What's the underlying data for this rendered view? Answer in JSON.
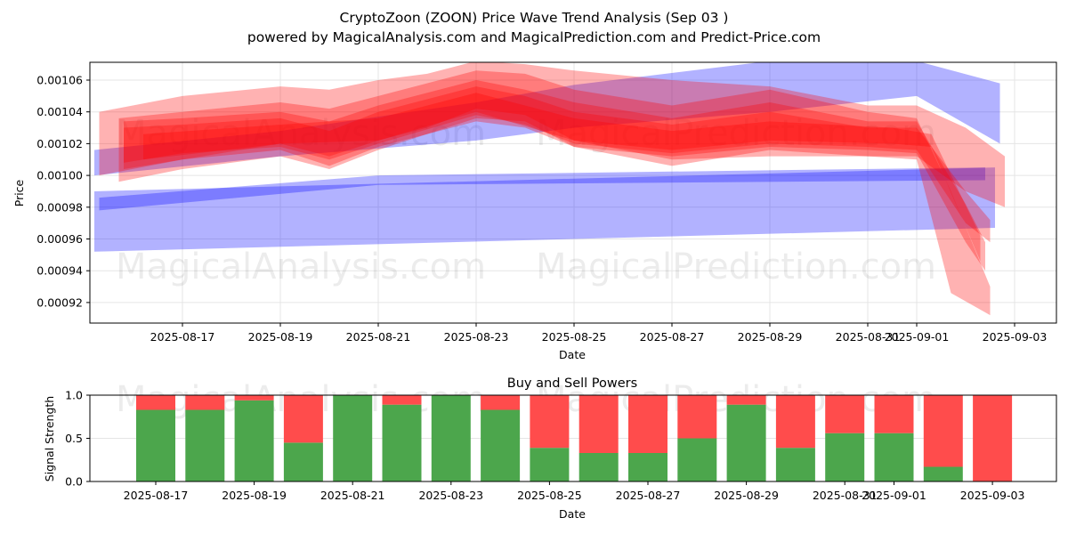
{
  "chart_data": [
    {
      "type": "area",
      "title_line1": "CryptoZoon (ZOON) Price Wave Trend Analysis (Sep 03 )",
      "title_line2": "powered by MagicalAnalysis.com and MagicalPrediction.com and Predict-Price.com",
      "xlabel": "Date",
      "ylabel": "Price",
      "ylim": [
        0.000908,
        0.001072
      ],
      "yticks": [
        "0.00092",
        "0.00094",
        "0.00096",
        "0.00098",
        "0.00100",
        "0.00102",
        "0.00104",
        "0.00106"
      ],
      "xticks": [
        "2025-08-17",
        "2025-08-19",
        "2025-08-21",
        "2025-08-23",
        "2025-08-25",
        "2025-08-27",
        "2025-08-29",
        "2025-08-31",
        "2025-09-01",
        "2025-09-03"
      ],
      "grid": true,
      "watermark": [
        "MagicalAnalysis.com",
        "MagicalPrediction.com"
      ],
      "bands": [
        {
          "color": "#0000ff",
          "opacity": 0.3,
          "points": [
            [
              -1.8,
              0.000952,
              0.00099
            ],
            [
              16.6,
              0.000967,
              0.001005
            ]
          ]
        },
        {
          "color": "#0000ff",
          "opacity": 0.3,
          "points": [
            [
              -1.7,
              0.000978,
              0.000986
            ],
            [
              4,
              0.000994,
              0.001
            ],
            [
              16.4,
              0.000997,
              0.001005
            ]
          ]
        },
        {
          "color": "#0000ff",
          "opacity": 0.3,
          "points": [
            [
              -1.8,
              0.001,
              0.001016
            ],
            [
              2,
              0.001012,
              0.001028
            ],
            [
              6,
              0.001022,
              0.001046
            ],
            [
              8,
              0.00103,
              0.001057
            ],
            [
              12,
              0.00104,
              0.001072
            ],
            [
              15,
              0.00105,
              0.001072
            ],
            [
              16.7,
              0.00102,
              0.001058
            ]
          ]
        },
        {
          "color": "#ff0000",
          "opacity": 0.3,
          "points": [
            [
              -1.7,
              0.001,
              0.00104
            ],
            [
              0,
              0.00101,
              0.00105
            ],
            [
              2,
              0.00102,
              0.001056
            ],
            [
              3,
              0.001012,
              0.001054
            ],
            [
              4,
              0.001022,
              0.00106
            ],
            [
              5,
              0.00103,
              0.001064
            ],
            [
              6,
              0.001042,
              0.001072
            ],
            [
              7,
              0.001038,
              0.00107
            ],
            [
              8,
              0.001022,
              0.001066
            ],
            [
              10,
              0.00101,
              0.00106
            ],
            [
              12,
              0.001012,
              0.001056
            ],
            [
              14,
              0.001012,
              0.001044
            ],
            [
              15,
              0.001012,
              0.001044
            ],
            [
              16,
              0.00099,
              0.00103
            ],
            [
              16.8,
              0.00098,
              0.001012
            ]
          ]
        },
        {
          "color": "#ff0000",
          "opacity": 0.3,
          "points": [
            [
              -1.3,
              0.000996,
              0.001036
            ],
            [
              0,
              0.001004,
              0.00104
            ],
            [
              2,
              0.001012,
              0.001046
            ],
            [
              3,
              0.001004,
              0.001042
            ],
            [
              4,
              0.001016,
              0.00105
            ],
            [
              6,
              0.001036,
              0.001066
            ],
            [
              7,
              0.001034,
              0.001064
            ],
            [
              8,
              0.001018,
              0.001054
            ],
            [
              10,
              0.001006,
              0.001044
            ],
            [
              12,
              0.001016,
              0.001054
            ],
            [
              14,
              0.001012,
              0.00104
            ],
            [
              15,
              0.00101,
              0.001036
            ],
            [
              15.7,
              0.000926,
              0.00099
            ],
            [
              16.5,
              0.000912,
              0.00093
            ]
          ]
        },
        {
          "color": "#ff0000",
          "opacity": 0.3,
          "points": [
            [
              -1.2,
              0.001004,
              0.001034
            ],
            [
              0,
              0.00101,
              0.001036
            ],
            [
              2,
              0.001016,
              0.00104
            ],
            [
              3,
              0.001006,
              0.001034
            ],
            [
              4,
              0.001018,
              0.001044
            ],
            [
              6,
              0.001034,
              0.00106
            ],
            [
              7,
              0.00103,
              0.001054
            ],
            [
              8,
              0.001018,
              0.001046
            ],
            [
              10,
              0.001012,
              0.001036
            ],
            [
              12,
              0.001018,
              0.001046
            ],
            [
              14,
              0.001016,
              0.001034
            ],
            [
              15,
              0.001014,
              0.001034
            ],
            [
              16,
              0.000958,
              0.000982
            ],
            [
              16.4,
              0.00094,
              0.000958
            ]
          ]
        },
        {
          "color": "#ff0000",
          "opacity": 0.3,
          "points": [
            [
              -1.2,
              0.001008,
              0.00103
            ],
            [
              0,
              0.001014,
              0.001032
            ],
            [
              2,
              0.001018,
              0.001036
            ],
            [
              3,
              0.00101,
              0.001028
            ],
            [
              4,
              0.00102,
              0.00104
            ],
            [
              6,
              0.001038,
              0.001056
            ],
            [
              7,
              0.001032,
              0.00105
            ],
            [
              8,
              0.00102,
              0.00104
            ],
            [
              10,
              0.001014,
              0.001032
            ],
            [
              12,
              0.00102,
              0.00104
            ],
            [
              14,
              0.001018,
              0.00103
            ],
            [
              15,
              0.001016,
              0.00103
            ],
            [
              16,
              0.00097,
              0.00099
            ],
            [
              16.5,
              0.000958,
              0.000972
            ]
          ]
        },
        {
          "color": "#ff0000",
          "opacity": 0.3,
          "points": [
            [
              -0.8,
              0.00101,
              0.001026
            ],
            [
              2,
              0.00102,
              0.001032
            ],
            [
              4,
              0.001022,
              0.001036
            ],
            [
              6,
              0.00104,
              0.001052
            ],
            [
              8,
              0.001022,
              0.001036
            ],
            [
              10,
              0.001016,
              0.001028
            ],
            [
              12,
              0.001022,
              0.001034
            ],
            [
              14.5,
              0.00102,
              0.00103
            ],
            [
              15.3,
              0.001018,
              0.001026
            ],
            [
              16.3,
              0.000946,
              0.000962
            ]
          ]
        }
      ]
    },
    {
      "type": "bar",
      "title": "Buy and Sell Powers",
      "xlabel": "Date",
      "ylabel": "Signal Strength",
      "ylim": [
        0,
        1
      ],
      "yticks": [
        "0.0",
        "0.5",
        "1.0"
      ],
      "xticks": [
        "2025-08-17",
        "2025-08-19",
        "2025-08-21",
        "2025-08-23",
        "2025-08-25",
        "2025-08-27",
        "2025-08-29",
        "2025-08-31",
        "2025-09-01",
        "2025-09-03"
      ],
      "categories": [
        "2025-08-17",
        "2025-08-18",
        "2025-08-19",
        "2025-08-20",
        "2025-08-21",
        "2025-08-22",
        "2025-08-23",
        "2025-08-24",
        "2025-08-25",
        "2025-08-26",
        "2025-08-27",
        "2025-08-28",
        "2025-08-29",
        "2025-08-30",
        "2025-08-31",
        "2025-09-01",
        "2025-09-02",
        "2025-09-03"
      ],
      "series": [
        {
          "name": "Buy",
          "color": "#4ca64c",
          "values": [
            0.83,
            0.83,
            0.94,
            0.45,
            1.0,
            0.89,
            1.0,
            0.83,
            0.39,
            0.33,
            0.33,
            0.5,
            0.89,
            0.39,
            0.56,
            0.56,
            0.17,
            0.0
          ]
        },
        {
          "name": "Sell",
          "color": "#ff4c4c",
          "values": [
            0.17,
            0.17,
            0.06,
            0.55,
            0.0,
            0.11,
            0.0,
            0.17,
            0.61,
            0.67,
            0.67,
            0.5,
            0.11,
            0.61,
            0.44,
            0.44,
            0.83,
            1.0
          ]
        }
      ]
    }
  ]
}
